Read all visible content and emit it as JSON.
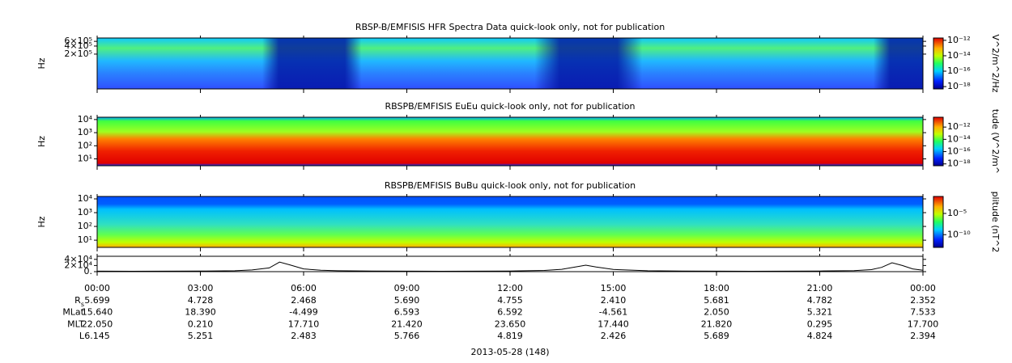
{
  "chart_data": [
    {
      "type": "spectrogram",
      "title": "RBSP-B/EMFISIS  HFR Spectra Data quick-look only, not for publication",
      "ylabel": "Hz",
      "log": true,
      "ylim": [
        10000,
        800000
      ],
      "yticks": [
        {
          "value": 600000,
          "label": "6×10⁵"
        },
        {
          "value": 400000,
          "label": "4×10⁵"
        },
        {
          "value": 200000,
          "label": "2×10⁵"
        }
      ],
      "colorbar": {
        "label": "V^2/m^2/Hz",
        "lim": [
          5e-19,
          2e-12
        ],
        "ticks": [
          {
            "value": 1e-12,
            "label": "10⁻¹²"
          },
          {
            "value": 1e-14,
            "label": "10⁻¹⁴"
          },
          {
            "value": 1e-16,
            "label": "10⁻¹⁶"
          },
          {
            "value": 1e-18,
            "label": "10⁻¹⁸"
          }
        ]
      }
    },
    {
      "type": "spectrogram",
      "title": "RBSPB/EMFISIS  EuEu quick-look only, not for publication",
      "ylabel": "Hz",
      "log": true,
      "ylim": [
        3,
        15000
      ],
      "yticks": [
        {
          "value": 10000,
          "label": "10⁴"
        },
        {
          "value": 1000,
          "label": "10³"
        },
        {
          "value": 100,
          "label": "10²"
        },
        {
          "value": 10,
          "label": "10¹"
        }
      ],
      "colorbar": {
        "label": "tude (V^2/m^",
        "lim": [
          5e-19,
          4e-11
        ],
        "ticks": [
          {
            "value": 1e-12,
            "label": "10⁻¹²"
          },
          {
            "value": 1e-14,
            "label": "10⁻¹⁴"
          },
          {
            "value": 1e-16,
            "label": "10⁻¹⁶"
          },
          {
            "value": 1e-18,
            "label": "10⁻¹⁸"
          }
        ]
      }
    },
    {
      "type": "spectrogram",
      "title": "RBSPB/EMFISIS  BuBu quick-look only, not for publication",
      "ylabel": "Hz",
      "log": true,
      "ylim": [
        3,
        15000
      ],
      "yticks": [
        {
          "value": 10000,
          "label": "10⁴"
        },
        {
          "value": 1000,
          "label": "10³"
        },
        {
          "value": 100,
          "label": "10²"
        },
        {
          "value": 10,
          "label": "10¹"
        }
      ],
      "colorbar": {
        "label": "plitude (nT^2",
        "lim": [
          1e-13,
          0.1
        ],
        "ticks": [
          {
            "value": 1e-05,
            "label": "10⁻⁵"
          },
          {
            "value": 1e-10,
            "label": "10⁻¹⁰"
          }
        ]
      }
    },
    {
      "type": "line",
      "log": false,
      "ylim": [
        0,
        50000
      ],
      "yticks": [
        {
          "value": 40000,
          "label": "4×10⁴"
        },
        {
          "value": 20000,
          "label": "2×10⁴"
        },
        {
          "value": 0,
          "label": "0."
        }
      ],
      "x": [
        0,
        1,
        2,
        3,
        4,
        4.5,
        5,
        5.3,
        5.6,
        6,
        6.5,
        7,
        8,
        9,
        10,
        11,
        12,
        13,
        13.5,
        14,
        14.2,
        14.5,
        15,
        16,
        17,
        18,
        19,
        20,
        21,
        22,
        22.5,
        22.8,
        23.1,
        23.4,
        23.7,
        24
      ],
      "values": [
        1500,
        1400,
        1500,
        1800,
        3000,
        5500,
        12000,
        31000,
        22000,
        9000,
        4500,
        3000,
        2000,
        1500,
        1400,
        1600,
        2200,
        4000,
        7500,
        17000,
        21000,
        15000,
        7000,
        3000,
        2000,
        1500,
        1400,
        1500,
        2000,
        3500,
        6500,
        14000,
        29000,
        20000,
        9000,
        4500
      ]
    }
  ],
  "time_axis": {
    "ticks": [
      {
        "value": 0,
        "label": "00:00"
      },
      {
        "value": 3,
        "label": "03:00"
      },
      {
        "value": 6,
        "label": "06:00"
      },
      {
        "value": 9,
        "label": "09:00"
      },
      {
        "value": 12,
        "label": "12:00"
      },
      {
        "value": 15,
        "label": "15:00"
      },
      {
        "value": 18,
        "label": "18:00"
      },
      {
        "value": 21,
        "label": "21:00"
      },
      {
        "value": 24,
        "label": "00:00"
      }
    ],
    "rows": [
      {
        "label": "R",
        "subscript": "s",
        "values": [
          "5.699",
          "4.728",
          "2.468",
          "5.690",
          "4.755",
          "2.410",
          "5.681",
          "4.782",
          "2.352"
        ]
      },
      {
        "label": "MLat",
        "values": [
          "15.640",
          "18.390",
          "-4.499",
          "6.593",
          "6.592",
          "-4.561",
          "2.050",
          "5.321",
          "7.533"
        ]
      },
      {
        "label": "MLT",
        "values": [
          "22.050",
          "0.210",
          "17.710",
          "21.420",
          "23.650",
          "17.440",
          "21.820",
          "0.295",
          "17.700"
        ]
      },
      {
        "label": "L",
        "values": [
          "6.145",
          "5.251",
          "2.483",
          "5.766",
          "4.819",
          "2.426",
          "5.689",
          "4.824",
          "2.394"
        ]
      }
    ],
    "date_label": "2013-05-28 (148)"
  }
}
